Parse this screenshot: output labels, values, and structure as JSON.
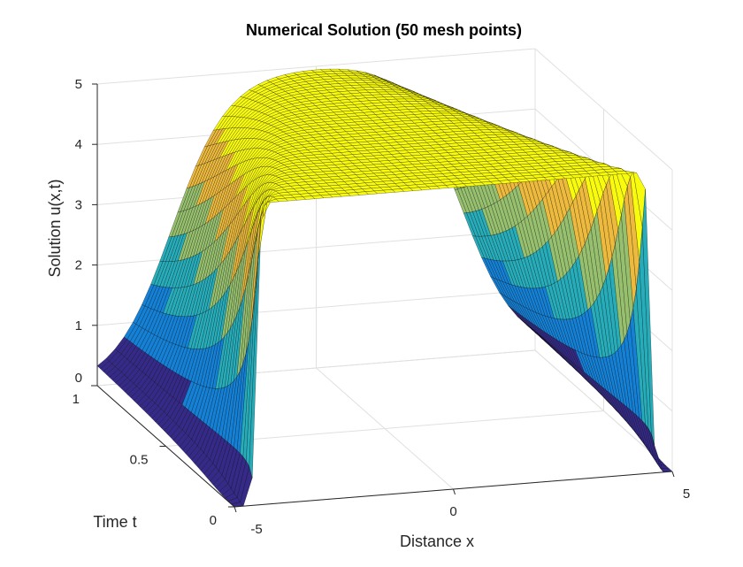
{
  "chart_data": {
    "type": "surface",
    "title": "Numerical Solution (50 mesh points)",
    "xlabel": "Distance x",
    "ylabel": "Time t",
    "zlabel": "Solution u(x,t)",
    "xlim": [
      -5,
      5
    ],
    "ylim": [
      0,
      1
    ],
    "zlim": [
      0,
      5
    ],
    "xticks": [
      "-5",
      "0",
      "5"
    ],
    "yticks": [
      "0",
      "0.5",
      "1"
    ],
    "zticks": [
      "0",
      "1",
      "2",
      "3",
      "4",
      "5"
    ],
    "mesh_points": 50,
    "grid": true,
    "colormap": "parula",
    "edge_color": "#000000",
    "shape": "u(x,t) = 5 on the plateau for |x| < 4.5 at t = 0 and |x| < 3.3 at t = 1, falling to 0 at the edges"
  }
}
